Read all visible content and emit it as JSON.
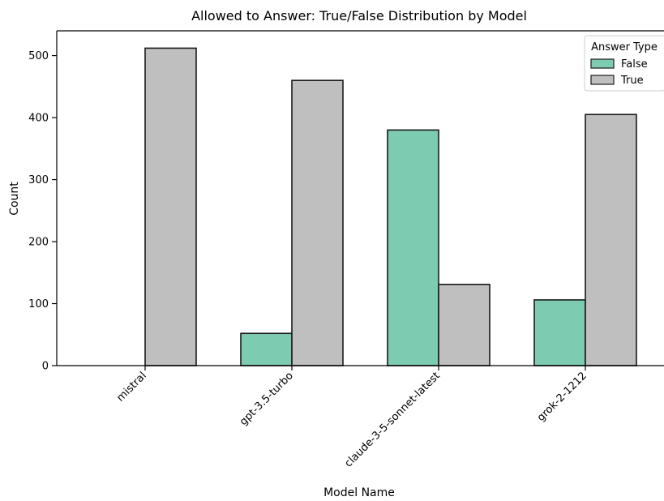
{
  "chart_data": {
    "type": "bar",
    "title": "Allowed to Answer: True/False Distribution by Model",
    "xlabel": "Model Name",
    "ylabel": "Count",
    "categories": [
      "mistral",
      "gpt-3.5-turbo",
      "claude-3-5-sonnet-latest",
      "grok-2-1212"
    ],
    "series": [
      {
        "name": "False",
        "values": [
          0,
          52,
          380,
          106
        ],
        "color": "#7dcbb1"
      },
      {
        "name": "True",
        "values": [
          512,
          460,
          131,
          405
        ],
        "color": "#bfbfbf"
      }
    ],
    "ylim": [
      0,
      540
    ],
    "yticks": [
      0,
      100,
      200,
      300,
      400,
      500
    ],
    "grid": false,
    "legend": {
      "title": "Answer Type",
      "position": "top-right"
    },
    "bar_edge_color": "#1a1a1a"
  }
}
